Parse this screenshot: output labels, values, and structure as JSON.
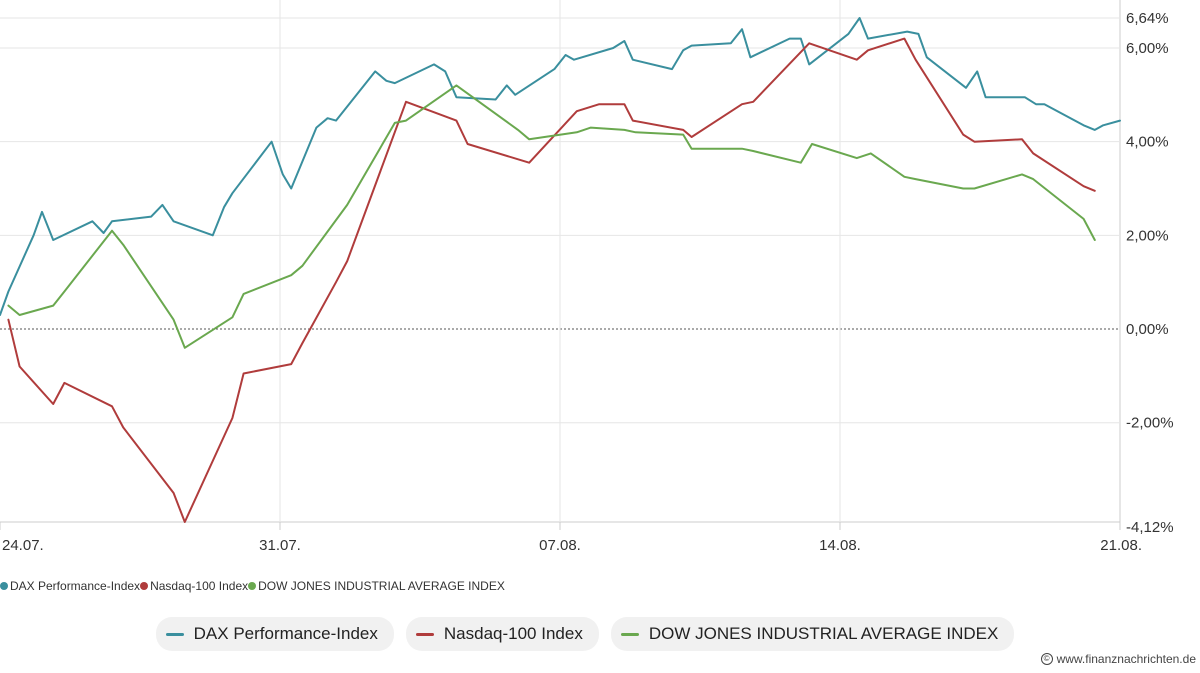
{
  "chart_data": {
    "type": "line",
    "title": "",
    "xlabel": "",
    "ylabel": "",
    "x_tick_labels": [
      "24.07.",
      "31.07.",
      "07.08.",
      "14.08.",
      "21.08."
    ],
    "y_ticks": [
      -2,
      0,
      2,
      4,
      6
    ],
    "y_tick_labels": [
      "-2,00%",
      "0,00%",
      "2,00%",
      "4,00%",
      "6,00%"
    ],
    "y_max_label": "6,64%",
    "y_min_label": "-4,12%",
    "ylim": [
      -4.12,
      6.64
    ],
    "xlim": [
      0,
      40
    ],
    "zero_line": true,
    "grid": true,
    "legend_position": "bottom",
    "series": [
      {
        "name": "DAX Performance-Index",
        "color": "#3a8f9e",
        "points": [
          [
            0,
            0.3
          ],
          [
            0.3,
            0.8
          ],
          [
            1.2,
            2
          ],
          [
            1.5,
            2.5
          ],
          [
            1.9,
            1.9
          ],
          [
            3.3,
            2.3
          ],
          [
            3.7,
            2.05
          ],
          [
            4,
            2.3
          ],
          [
            5.4,
            2.4
          ],
          [
            5.8,
            2.65
          ],
          [
            6.2,
            2.3
          ],
          [
            7.6,
            2
          ],
          [
            8,
            2.6
          ],
          [
            8.3,
            2.9
          ],
          [
            9.7,
            4
          ],
          [
            10.1,
            3.3
          ],
          [
            10.4,
            3
          ],
          [
            11.3,
            4.3
          ],
          [
            11.7,
            4.5
          ],
          [
            12,
            4.45
          ],
          [
            13.4,
            5.5
          ],
          [
            13.8,
            5.3
          ],
          [
            14.1,
            5.25
          ],
          [
            15.5,
            5.65
          ],
          [
            15.9,
            5.5
          ],
          [
            16.3,
            4.95
          ],
          [
            17.7,
            4.9
          ],
          [
            18.1,
            5.2
          ],
          [
            18.4,
            5
          ],
          [
            19.8,
            5.55
          ],
          [
            20.2,
            5.85
          ],
          [
            20.5,
            5.75
          ],
          [
            21.9,
            6
          ],
          [
            22.3,
            6.15
          ],
          [
            22.6,
            5.75
          ],
          [
            24,
            5.55
          ],
          [
            24.4,
            5.95
          ],
          [
            24.7,
            6.05
          ],
          [
            26.1,
            6.1
          ],
          [
            26.5,
            6.4
          ],
          [
            26.8,
            5.8
          ],
          [
            28.2,
            6.2
          ],
          [
            28.6,
            6.2
          ],
          [
            28.9,
            5.65
          ],
          [
            30.3,
            6.3
          ],
          [
            30.7,
            6.64
          ],
          [
            31,
            6.2
          ],
          [
            32.4,
            6.35
          ],
          [
            32.8,
            6.3
          ],
          [
            33.1,
            5.8
          ],
          [
            34.5,
            5.15
          ],
          [
            34.9,
            5.5
          ],
          [
            35.2,
            4.95
          ],
          [
            36.6,
            4.95
          ],
          [
            37,
            4.8
          ],
          [
            37.3,
            4.8
          ],
          [
            38.7,
            4.35
          ],
          [
            39.1,
            4.25
          ],
          [
            39.4,
            4.35
          ],
          [
            40,
            4.45
          ]
        ]
      },
      {
        "name": "Nasdaq-100 Index",
        "color": "#b03c3c",
        "points": [
          [
            0.3,
            0.2
          ],
          [
            0.7,
            -0.8
          ],
          [
            1.9,
            -1.6
          ],
          [
            2.3,
            -1.15
          ],
          [
            4,
            -1.65
          ],
          [
            4.4,
            -2.1
          ],
          [
            6.2,
            -3.5
          ],
          [
            6.6,
            -4.12
          ],
          [
            8.3,
            -1.9
          ],
          [
            8.7,
            -0.95
          ],
          [
            10.4,
            -0.75
          ],
          [
            10.8,
            -0.3
          ],
          [
            12,
            1
          ],
          [
            12.4,
            1.45
          ],
          [
            14.5,
            4.85
          ],
          [
            16.3,
            4.45
          ],
          [
            16.7,
            3.95
          ],
          [
            18.9,
            3.55
          ],
          [
            20.6,
            4.65
          ],
          [
            21.4,
            4.8
          ],
          [
            22.3,
            4.8
          ],
          [
            22.6,
            4.45
          ],
          [
            24.4,
            4.25
          ],
          [
            24.7,
            4.1
          ],
          [
            26.5,
            4.8
          ],
          [
            26.9,
            4.85
          ],
          [
            28.9,
            6.1
          ],
          [
            30.6,
            5.75
          ],
          [
            31,
            5.95
          ],
          [
            32.3,
            6.2
          ],
          [
            32.7,
            5.75
          ],
          [
            34.4,
            4.15
          ],
          [
            34.8,
            4
          ],
          [
            36.5,
            4.05
          ],
          [
            36.9,
            3.75
          ],
          [
            38.7,
            3.05
          ],
          [
            39.1,
            2.95
          ]
        ]
      },
      {
        "name": "DOW JONES INDUSTRIAL AVERAGE INDEX",
        "color": "#6aa84f",
        "points": [
          [
            0.3,
            0.5
          ],
          [
            0.7,
            0.3
          ],
          [
            1.9,
            0.5
          ],
          [
            2.3,
            0.8
          ],
          [
            4,
            2.1
          ],
          [
            4.4,
            1.8
          ],
          [
            6.2,
            0.2
          ],
          [
            6.6,
            -0.4
          ],
          [
            8.3,
            0.25
          ],
          [
            8.7,
            0.75
          ],
          [
            10.4,
            1.15
          ],
          [
            10.8,
            1.35
          ],
          [
            12.4,
            2.65
          ],
          [
            14.1,
            4.4
          ],
          [
            14.5,
            4.45
          ],
          [
            16.3,
            5.2
          ],
          [
            18.5,
            4.25
          ],
          [
            18.9,
            4.05
          ],
          [
            20.6,
            4.2
          ],
          [
            21.1,
            4.3
          ],
          [
            22.3,
            4.25
          ],
          [
            22.7,
            4.2
          ],
          [
            24.4,
            4.15
          ],
          [
            24.7,
            3.85
          ],
          [
            26.5,
            3.85
          ],
          [
            26.9,
            3.8
          ],
          [
            28.6,
            3.55
          ],
          [
            29,
            3.95
          ],
          [
            30.6,
            3.65
          ],
          [
            31.1,
            3.75
          ],
          [
            32.3,
            3.25
          ],
          [
            32.7,
            3.2
          ],
          [
            34.4,
            3
          ],
          [
            34.8,
            3
          ],
          [
            36.5,
            3.3
          ],
          [
            36.9,
            3.2
          ],
          [
            38.7,
            2.35
          ],
          [
            39.1,
            1.9
          ]
        ]
      }
    ]
  },
  "small_legend": [
    {
      "label": "DAX Performance-Index",
      "color": "#3a8f9e"
    },
    {
      "label": "Nasdaq-100 Index",
      "color": "#b03c3c"
    },
    {
      "label": "DOW JONES INDUSTRIAL AVERAGE INDEX",
      "color": "#6aa84f"
    }
  ],
  "legend": [
    {
      "label": "DAX Performance-Index",
      "color": "#3a8f9e"
    },
    {
      "label": "Nasdaq-100 Index",
      "color": "#b03c3c"
    },
    {
      "label": "DOW JONES INDUSTRIAL AVERAGE INDEX",
      "color": "#6aa84f"
    }
  ],
  "watermark": {
    "text": "www.finanznachrichten.de",
    "icon": "copyright-icon"
  }
}
